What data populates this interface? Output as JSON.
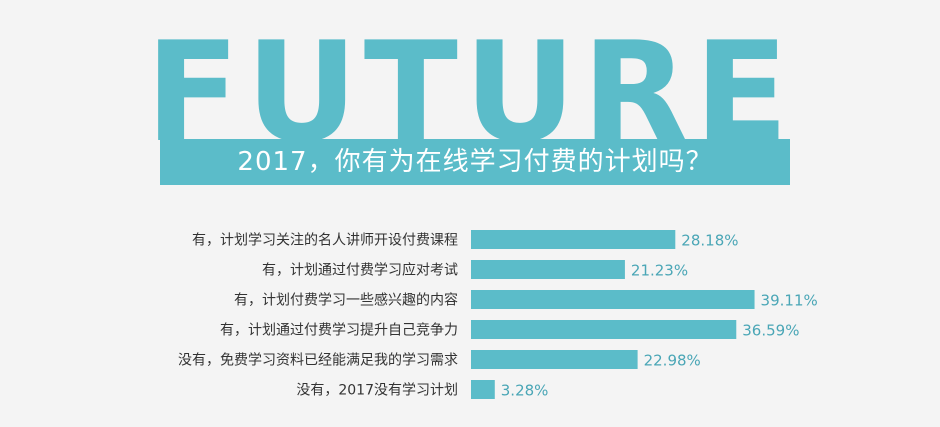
{
  "header": {
    "big_word": "FUTURE",
    "banner_text": "2017，你有为在线学习付费的计划吗？"
  },
  "colors": {
    "accent": "#5bbcc9",
    "value_text": "#4aa6b6",
    "background": "#f4f4f4"
  },
  "chart_data": {
    "type": "bar",
    "orientation": "horizontal",
    "categories": [
      "有，计划学习关注的名人讲师开设付费课程",
      "有，计划通过付费学习应对考试",
      "有，计划付费学习一些感兴趣的内容",
      "有，计划通过付费学习提升自己竞争力",
      "没有，免费学习资料已经能满足我的学习需求",
      "没有，2017没有学习计划"
    ],
    "values": [
      28.18,
      21.23,
      39.11,
      36.59,
      22.98,
      3.28
    ],
    "value_labels": [
      "28.18%",
      "21.23%",
      "39.11%",
      "36.59%",
      "22.98%",
      "3.28%"
    ],
    "unit": "%",
    "xlim": [
      0,
      40
    ],
    "grid": false
  }
}
